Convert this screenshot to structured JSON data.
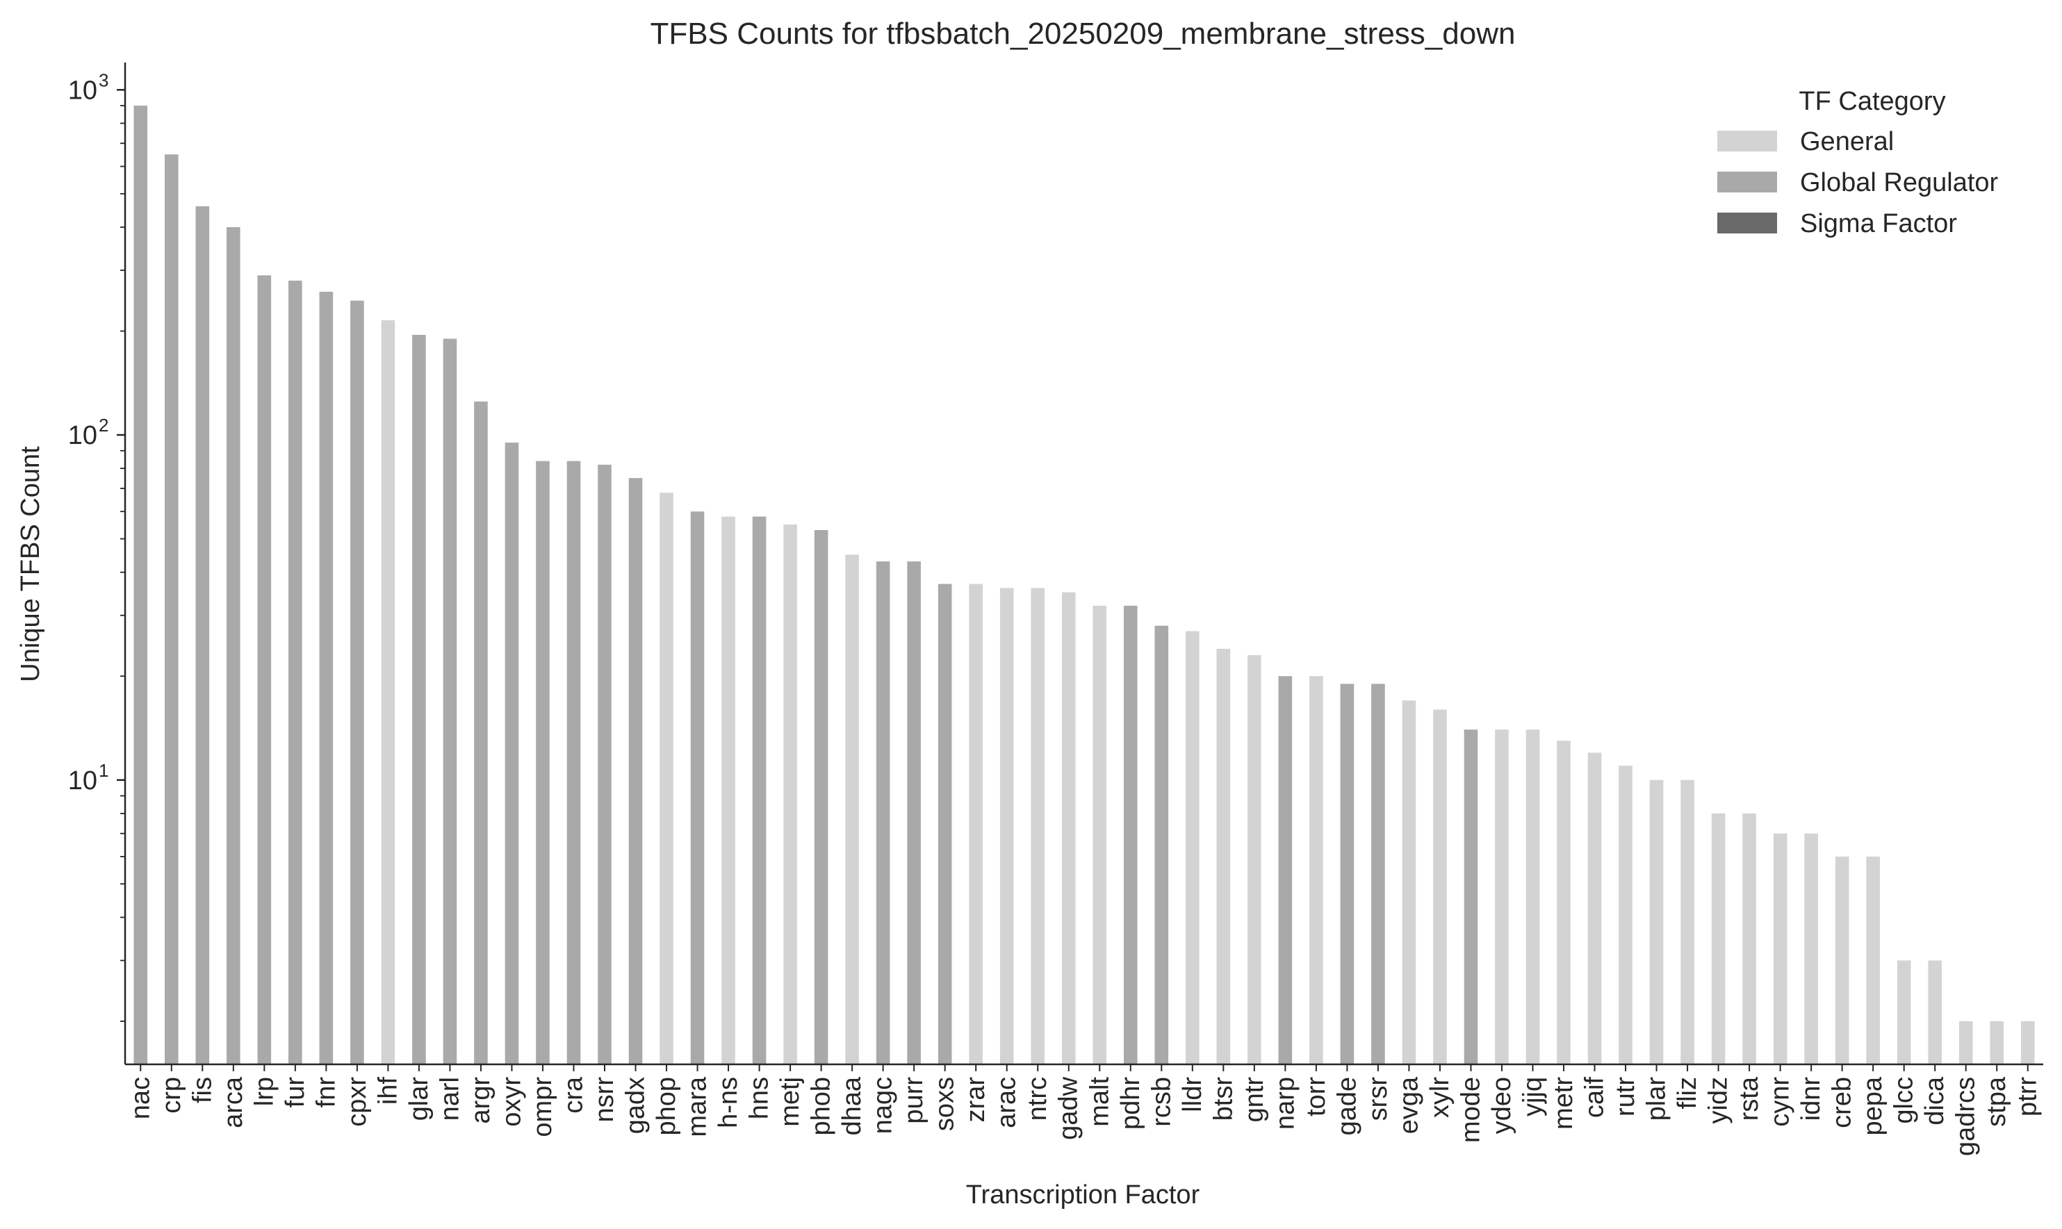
{
  "chart_data": {
    "type": "bar",
    "title": "TFBS Counts for tfbsbatch_20250209_membrane_stress_down",
    "xlabel": "Transcription Factor",
    "ylabel": "Unique TFBS Count",
    "yscale": "log",
    "ylim": [
      1.5,
      1200
    ],
    "yticks": [
      {
        "base": "10",
        "exp": "1",
        "value": 10
      },
      {
        "base": "10",
        "exp": "2",
        "value": 100
      },
      {
        "base": "10",
        "exp": "3",
        "value": 1000
      }
    ],
    "grid": false,
    "legend": {
      "title": "TF Category",
      "placement": "top-right",
      "entries": [
        {
          "label": "General",
          "color": "#d3d3d3"
        },
        {
          "label": "Global Regulator",
          "color": "#a9a9a9"
        },
        {
          "label": "Sigma Factor",
          "color": "#696969"
        }
      ]
    },
    "categories": [
      "nac",
      "crp",
      "fis",
      "arca",
      "lrp",
      "fur",
      "fnr",
      "cpxr",
      "ihf",
      "glar",
      "narl",
      "argr",
      "oxyr",
      "ompr",
      "cra",
      "nsrr",
      "gadx",
      "phop",
      "mara",
      "h-ns",
      "hns",
      "metj",
      "phob",
      "dhaa",
      "nagc",
      "purr",
      "soxs",
      "zrar",
      "arac",
      "ntrc",
      "gadw",
      "malt",
      "pdhr",
      "rcsb",
      "lldr",
      "btsr",
      "gntr",
      "narp",
      "torr",
      "gade",
      "srsr",
      "evga",
      "xylr",
      "mode",
      "ydeo",
      "yjjq",
      "metr",
      "caif",
      "rutr",
      "plar",
      "fliz",
      "yidz",
      "rsta",
      "cynr",
      "idnr",
      "creb",
      "pepa",
      "glcc",
      "dica",
      "gadrcs",
      "stpa",
      "ptrr"
    ],
    "values": [
      900,
      650,
      460,
      400,
      290,
      280,
      260,
      245,
      215,
      195,
      190,
      125,
      95,
      84,
      84,
      82,
      75,
      68,
      60,
      58,
      58,
      55,
      53,
      45,
      43,
      43,
      37,
      37,
      36,
      36,
      35,
      32,
      32,
      28,
      27,
      24,
      23,
      20,
      20,
      19,
      19,
      17,
      16,
      14,
      14,
      14,
      13,
      12,
      11,
      10,
      10,
      8,
      8,
      7,
      7,
      6,
      6,
      3,
      3,
      2,
      2,
      2
    ],
    "category_group": [
      "Global Regulator",
      "Global Regulator",
      "Global Regulator",
      "Global Regulator",
      "Global Regulator",
      "Global Regulator",
      "Global Regulator",
      "Global Regulator",
      "General",
      "Global Regulator",
      "Global Regulator",
      "Global Regulator",
      "Global Regulator",
      "Global Regulator",
      "Global Regulator",
      "Global Regulator",
      "Global Regulator",
      "General",
      "Global Regulator",
      "General",
      "Global Regulator",
      "General",
      "Global Regulator",
      "General",
      "Global Regulator",
      "Global Regulator",
      "Global Regulator",
      "General",
      "General",
      "General",
      "General",
      "General",
      "Global Regulator",
      "Global Regulator",
      "General",
      "General",
      "General",
      "Global Regulator",
      "General",
      "Global Regulator",
      "Global Regulator",
      "General",
      "General",
      "Global Regulator",
      "General",
      "General",
      "General",
      "General",
      "General",
      "General",
      "General",
      "General",
      "General",
      "General",
      "General",
      "General",
      "General",
      "General",
      "General",
      "General",
      "General",
      "General"
    ],
    "colors": {
      "General": "#d3d3d3",
      "Global Regulator": "#a9a9a9",
      "Sigma Factor": "#696969"
    }
  }
}
